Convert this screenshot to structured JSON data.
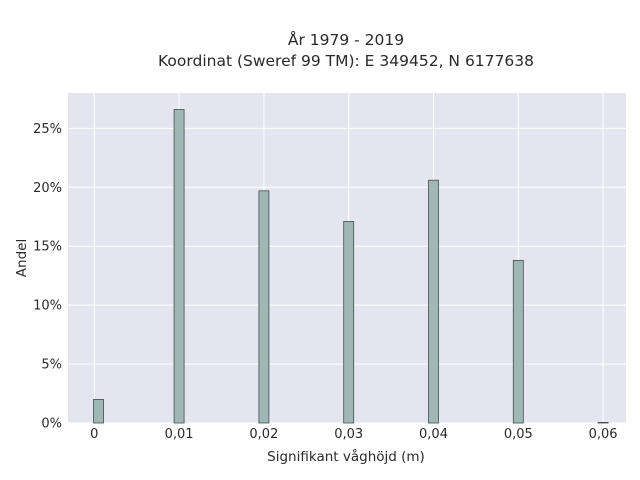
{
  "chart_data": {
    "type": "bar",
    "title_lines": [
      "År 1979 - 2019",
      "Koordinat (Sweref 99 TM): E 349452, N 6177638"
    ],
    "xlabel": "Signifikant våghöjd (m)",
    "ylabel": "Andel",
    "x_ticks": [
      "0",
      "0,01",
      "0,02",
      "0,03",
      "0,04",
      "0,05",
      "0,06"
    ],
    "x_tick_values": [
      0,
      0.01,
      0.02,
      0.03,
      0.04,
      0.05,
      0.06
    ],
    "y_ticks": [
      "0%",
      "5%",
      "10%",
      "15%",
      "20%",
      "25%"
    ],
    "y_tick_values": [
      0,
      5,
      10,
      15,
      20,
      25
    ],
    "xlim": [
      -0.0031,
      0.0627
    ],
    "ylim": [
      0,
      28
    ],
    "x": [
      0.0005,
      0.01,
      0.02,
      0.03,
      0.04,
      0.05,
      0.06
    ],
    "values": [
      2.0,
      26.6,
      19.7,
      17.1,
      20.6,
      13.8,
      0.05
    ],
    "grid": true,
    "colors": {
      "bar_fill": "#9fb7b5",
      "bar_edge": "#3f4f4e",
      "plot_bg": "#e5e5ef",
      "grid": "#ffffff"
    }
  }
}
